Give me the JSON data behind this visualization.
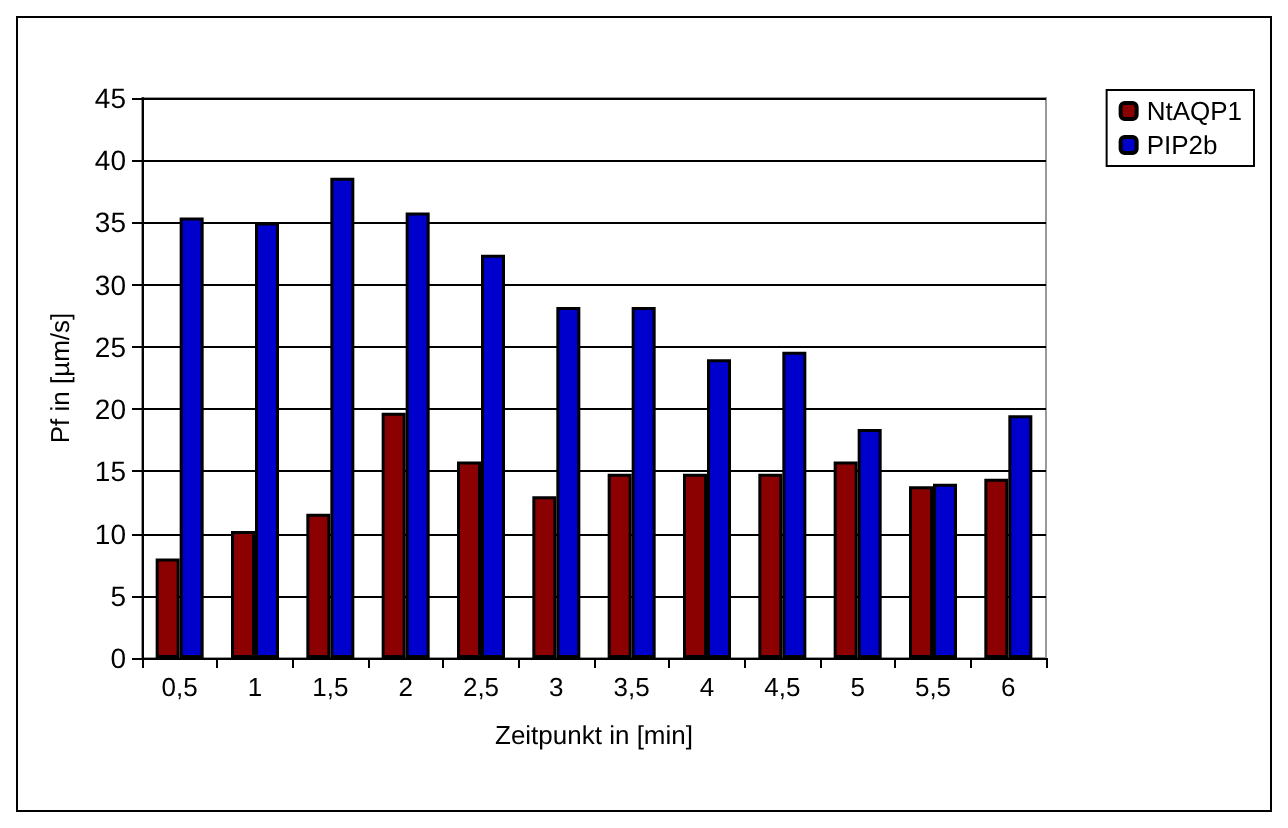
{
  "chart_data": {
    "type": "bar",
    "xlabel": "Zeitpunkt in [min]",
    "ylabel": "Pf in [µm/s]",
    "categories": [
      "0,5",
      "1",
      "1,5",
      "2",
      "2,5",
      "3",
      "3,5",
      "4",
      "4,5",
      "5",
      "5,5",
      "6"
    ],
    "series": [
      {
        "name": "NtAQP1",
        "color": "#8b0000",
        "values": [
          8,
          10.2,
          11.6,
          19.7,
          15.8,
          13,
          14.8,
          14.8,
          14.8,
          15.8,
          13.8,
          14.4
        ]
      },
      {
        "name": "PIP2b",
        "color": "#0000cc",
        "values": [
          35.4,
          35,
          38.6,
          35.8,
          32.4,
          28.2,
          28.2,
          24,
          24.6,
          18.4,
          14,
          19.5
        ]
      }
    ],
    "ylim": [
      0,
      45
    ],
    "yticks": [
      0,
      5,
      10,
      15,
      20,
      25,
      30,
      35,
      40,
      45
    ],
    "grid": "y",
    "legend": "top right"
  }
}
